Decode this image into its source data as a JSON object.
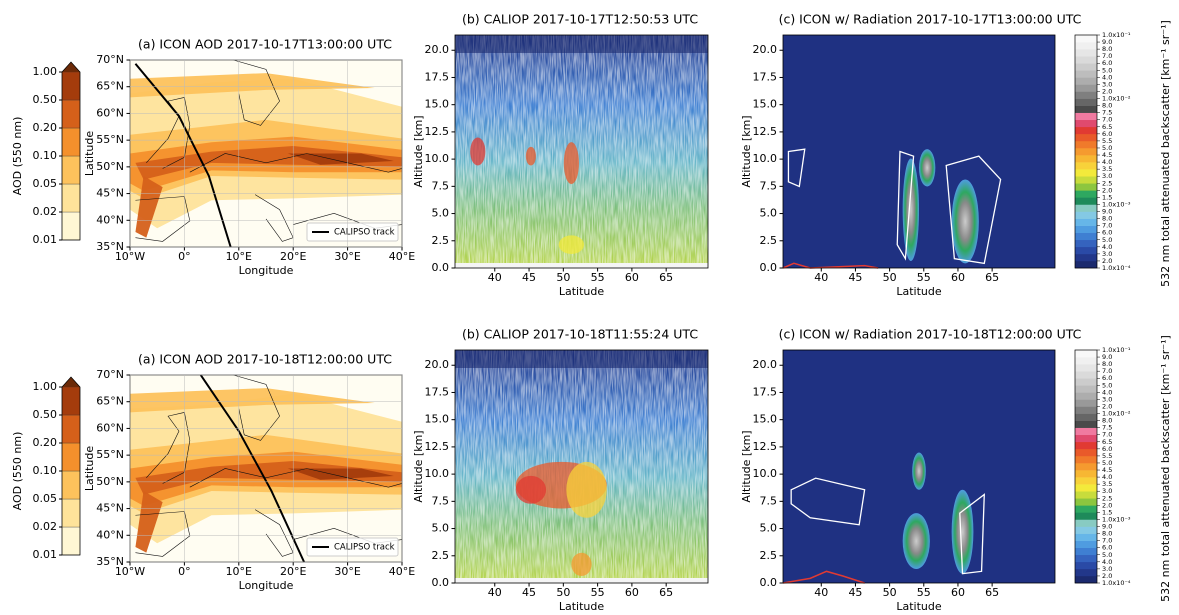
{
  "chart_data": [
    {
      "type": "map",
      "title": "(a) ICON AOD 2017-10-17T13:00:00 UTC",
      "xlabel": "Longitude",
      "ylabel": "Latitude",
      "xlim": [
        -10,
        40
      ],
      "ylim": [
        35,
        70
      ],
      "grid": true,
      "legend": "lower right",
      "track_label": "CALIPSO track",
      "track_color": "#000000",
      "xticks": [
        {
          "value": -10,
          "label": "10°W"
        },
        {
          "value": 0,
          "label": "0°"
        },
        {
          "value": 10,
          "label": "10°E"
        },
        {
          "value": 20,
          "label": "20°E"
        },
        {
          "value": 30,
          "label": "30°E"
        },
        {
          "value": 40,
          "label": "40°E"
        }
      ],
      "yticks": [
        {
          "value": 35,
          "label": "35°N"
        },
        {
          "value": 40,
          "label": "40°N"
        },
        {
          "value": 45,
          "label": "45°N"
        },
        {
          "value": 50,
          "label": "50°N"
        },
        {
          "value": 55,
          "label": "55°N"
        },
        {
          "value": 60,
          "label": "60°N"
        },
        {
          "value": 65,
          "label": "65°N"
        },
        {
          "value": 70,
          "label": "70°N"
        }
      ]
    },
    {
      "type": "lidar",
      "title": "(b) CALIOP 2017-10-17T12:50:53 UTC",
      "xlabel": "Latitude",
      "ylabel": "Altitude [km]",
      "xlim": [
        34.2,
        71.1
      ],
      "ylim": [
        0,
        21.4
      ],
      "xticks": [
        40,
        45,
        50,
        55,
        60,
        65
      ],
      "yticks": [
        {
          "value": 0,
          "label": "0.0"
        },
        2.5,
        {
          "value": 5,
          "label": "5.0"
        },
        7.5,
        {
          "value": 10,
          "label": "10.0"
        },
        12.5,
        {
          "value": 15,
          "label": "15.0"
        },
        17.5,
        {
          "value": 20,
          "label": "20.0"
        }
      ]
    },
    {
      "type": "model",
      "title": "(c) ICON w/ Radiation 2017-10-17T13:00:00 UTC",
      "xlabel": "Latitude",
      "ylabel": "Altitude [km]",
      "xlim": [
        34.4,
        74.2
      ],
      "ylim": [
        0,
        21.4
      ],
      "xticks": [
        40,
        45,
        50,
        55,
        60,
        65
      ],
      "yticks": [
        {
          "value": 0,
          "label": "0.0"
        },
        2.5,
        {
          "value": 5,
          "label": "5.0"
        },
        7.5,
        {
          "value": 10,
          "label": "10.0"
        },
        12.5,
        {
          "value": 15,
          "label": "15.0"
        },
        17.5,
        {
          "value": 20,
          "label": "20.0"
        }
      ]
    },
    {
      "type": "map",
      "title": "(a) ICON AOD 2017-10-18T12:00:00 UTC",
      "xlabel": "Longitude",
      "ylabel": "Latitude",
      "xlim": [
        -10,
        40
      ],
      "ylim": [
        35,
        70
      ],
      "grid": true,
      "legend": "lower right",
      "track_label": "CALIPSO track",
      "track_color": "#000000",
      "xticks": [
        {
          "value": -10,
          "label": "10°W"
        },
        {
          "value": 0,
          "label": "0°"
        },
        {
          "value": 10,
          "label": "10°E"
        },
        {
          "value": 20,
          "label": "20°E"
        },
        {
          "value": 30,
          "label": "30°E"
        },
        {
          "value": 40,
          "label": "40°E"
        }
      ],
      "yticks": [
        {
          "value": 35,
          "label": "35°N"
        },
        {
          "value": 40,
          "label": "40°N"
        },
        {
          "value": 45,
          "label": "45°N"
        },
        {
          "value": 50,
          "label": "50°N"
        },
        {
          "value": 55,
          "label": "55°N"
        },
        {
          "value": 60,
          "label": "60°N"
        },
        {
          "value": 65,
          "label": "65°N"
        },
        {
          "value": 70,
          "label": "70°N"
        }
      ]
    },
    {
      "type": "lidar",
      "title": "(b) CALIOP 2017-10-18T11:55:24 UTC",
      "xlabel": "Latitude",
      "ylabel": "Altitude [km]",
      "xlim": [
        34.2,
        71.1
      ],
      "ylim": [
        0,
        21.4
      ],
      "xticks": [
        40,
        45,
        50,
        55,
        60,
        65
      ],
      "yticks": [
        {
          "value": 0,
          "label": "0.0"
        },
        2.5,
        {
          "value": 5,
          "label": "5.0"
        },
        7.5,
        {
          "value": 10,
          "label": "10.0"
        },
        12.5,
        {
          "value": 15,
          "label": "15.0"
        },
        17.5,
        {
          "value": 20,
          "label": "20.0"
        }
      ]
    },
    {
      "type": "model",
      "title": "(c) ICON w/ Radiation 2017-10-18T12:00:00 UTC",
      "xlabel": "Latitude",
      "ylabel": "Altitude [km]",
      "xlim": [
        34.4,
        74.2
      ],
      "ylim": [
        0,
        21.4
      ],
      "xticks": [
        40,
        45,
        50,
        55,
        60,
        65
      ],
      "yticks": [
        {
          "value": 0,
          "label": "0.0"
        },
        2.5,
        {
          "value": 5,
          "label": "5.0"
        },
        7.5,
        {
          "value": 10,
          "label": "10.0"
        },
        12.5,
        {
          "value": 15,
          "label": "15.0"
        },
        17.5,
        {
          "value": 20,
          "label": "20.0"
        }
      ]
    }
  ],
  "colorbars": {
    "aod": {
      "label": "AOD (550 nm)",
      "ticks": [
        0.01,
        0.02,
        0.05,
        {
          "value": 0.1,
          "label": "0.10"
        },
        {
          "value": 0.2,
          "label": "0.20"
        },
        {
          "value": 0.5,
          "label": "0.50"
        },
        {
          "value": 1,
          "label": "1.00"
        }
      ],
      "colors": [
        "#fff7d4",
        "#fee39a",
        "#fdc25c",
        "#f4902c",
        "#d5601a",
        "#a43c0c"
      ],
      "extend_color": "#6b2a08"
    },
    "backscatter": {
      "label": "532 nm total attenuated backscatter [km⁻¹ sr⁻¹]",
      "ticks": [
        {
          "value": 0.0001,
          "label": "1.0x10⁻⁴"
        },
        {
          "value": 0.0002,
          "label": "2.0"
        },
        {
          "value": 0.0003,
          "label": "3.0"
        },
        {
          "value": 0.0004,
          "label": "4.0"
        },
        {
          "value": 0.0005,
          "label": "5.0"
        },
        {
          "value": 0.0006,
          "label": "6.0"
        },
        {
          "value": 0.0007,
          "label": "7.0"
        },
        {
          "value": 0.0008,
          "label": "8.0"
        },
        {
          "value": 0.0009,
          "label": "9.0"
        },
        {
          "value": 0.001,
          "label": "1.0x10⁻³"
        },
        {
          "value": 0.0015,
          "label": "1.5"
        },
        {
          "value": 0.002,
          "label": "2.0"
        },
        {
          "value": 0.0025,
          "label": "2.5"
        },
        {
          "value": 0.003,
          "label": "3.0"
        },
        {
          "value": 0.0035,
          "label": "3.5"
        },
        {
          "value": 0.004,
          "label": "4.0"
        },
        {
          "value": 0.0045,
          "label": "4.5"
        },
        {
          "value": 0.005,
          "label": "5.0"
        },
        {
          "value": 0.0055,
          "label": "5.5"
        },
        {
          "value": 0.006,
          "label": "6.0"
        },
        {
          "value": 0.0065,
          "label": "6.5"
        },
        {
          "value": 0.007,
          "label": "7.0"
        },
        {
          "value": 0.0075,
          "label": "7.5"
        },
        {
          "value": 0.008,
          "label": "8.0"
        },
        {
          "value": 0.01,
          "label": "1.0x10⁻²"
        },
        {
          "value": 0.02,
          "label": "2.0"
        },
        {
          "value": 0.03,
          "label": "3.0"
        },
        {
          "value": 0.04,
          "label": "4.0"
        },
        {
          "value": 0.05,
          "label": "5.0"
        },
        {
          "value": 0.06,
          "label": "6.0"
        },
        {
          "value": 0.07,
          "label": "7.0"
        },
        {
          "value": 0.08,
          "label": "8.0"
        },
        {
          "value": 0.09,
          "label": "9.0"
        },
        {
          "value": 0.1,
          "label": "1.0x10⁻¹"
        }
      ],
      "colors": [
        "#1b2a6e",
        "#22378a",
        "#2a4aa6",
        "#3563be",
        "#3f7fd2",
        "#4f9ce0",
        "#66b6e8",
        "#84c9e4",
        "#88cbc2",
        "#1e8a5a",
        "#2ea860",
        "#8cc63f",
        "#c8dc3c",
        "#f3ea3b",
        "#f8d23a",
        "#f7b733",
        "#f59a2f",
        "#f07a2b",
        "#e95a2a",
        "#e13a32",
        "#e04a6e",
        "#f07aa0",
        "#4a4a4a",
        "#666666",
        "#7f7f7f",
        "#999999",
        "#adadad",
        "#bdbdbd",
        "#cccccc",
        "#dadada",
        "#e6e6e6",
        "#f0f0f0",
        "#f8f8f8"
      ]
    }
  }
}
